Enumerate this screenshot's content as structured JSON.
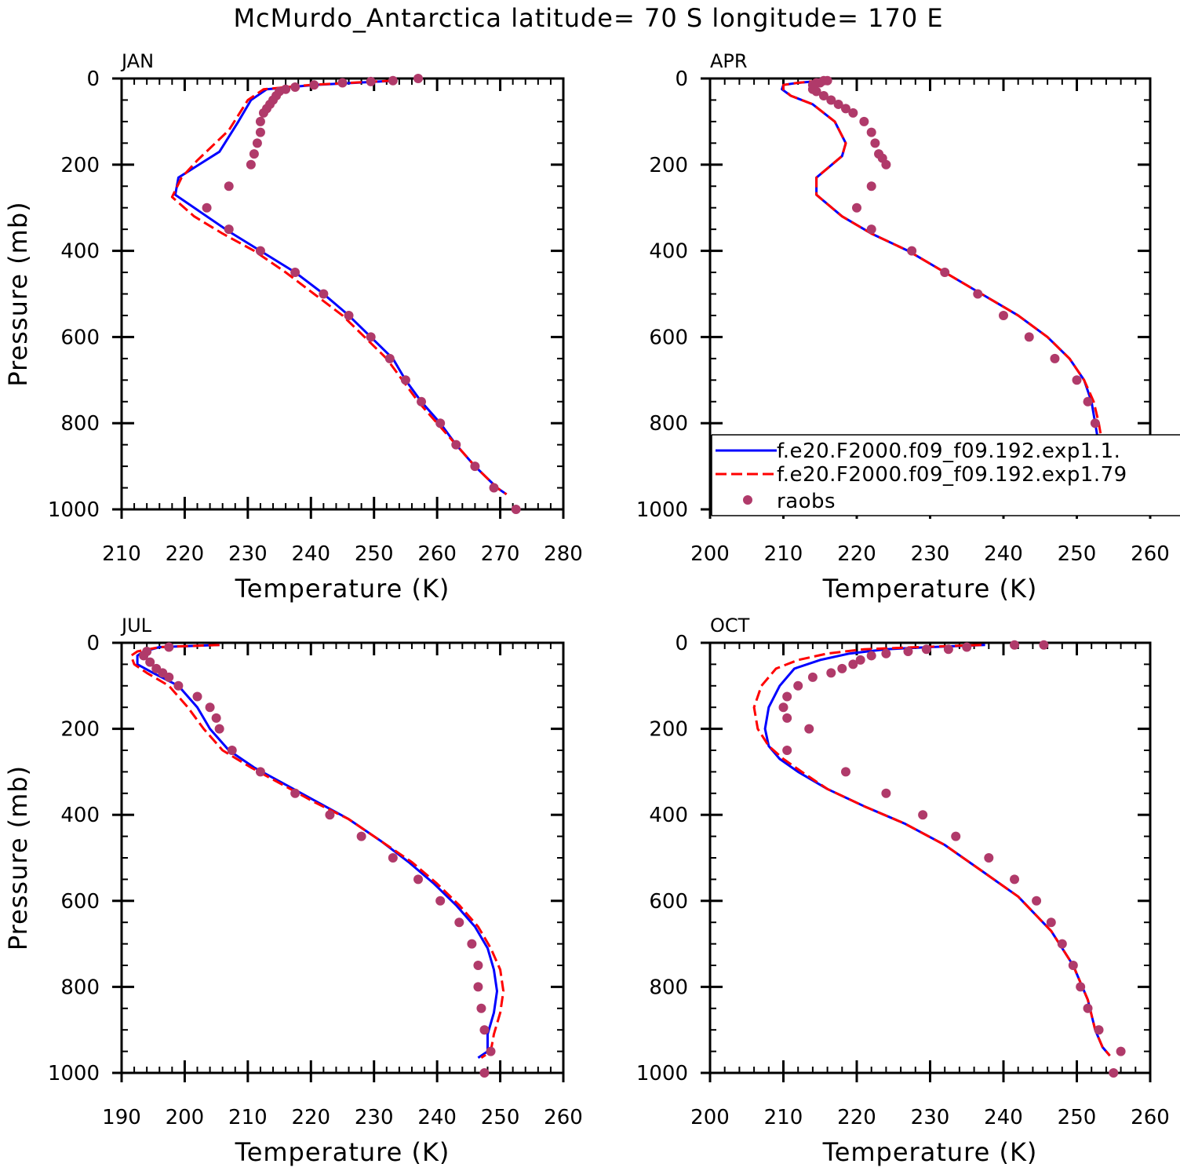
{
  "title": "McMurdo_Antarctica  latitude= 70 S longitude= 170 E",
  "legend": {
    "entries": [
      {
        "label": "f.e20.F2000.f09_f09.192.exp1.1.",
        "color": "#0000ff",
        "style": "solid"
      },
      {
        "label": "f.e20.F2000.f09_f09.192.exp1.79",
        "color": "#ff0000",
        "style": "dashed"
      },
      {
        "label": "raobs",
        "color": "#b03a6a",
        "style": "marker"
      }
    ]
  },
  "chart_data": [
    {
      "type": "line",
      "label": "JAN",
      "xlabel": "Temperature (K)",
      "ylabel": "Pressure (mb)",
      "xlim": [
        210,
        280
      ],
      "ylim": [
        1000,
        0
      ],
      "xticks": [
        210,
        220,
        230,
        240,
        250,
        260,
        270,
        280
      ],
      "yticks": [
        0,
        200,
        400,
        600,
        800,
        1000
      ],
      "series": [
        {
          "color": "#0000ff",
          "style": "solid",
          "x": [
            253.5,
            240.5,
            233,
            230.5,
            228.5,
            225.5,
            219,
            218.5,
            222.5,
            227,
            232,
            237.5,
            242,
            246,
            249.5,
            253,
            255,
            257.5,
            260.5,
            263,
            266,
            269.5,
            271
          ],
          "y": [
            5,
            15,
            25,
            50,
            100,
            170,
            230,
            270,
            310,
            355,
            400,
            450,
            500,
            550,
            600,
            650,
            700,
            750,
            800,
            850,
            900,
            950,
            965
          ]
        },
        {
          "color": "#ff0000",
          "style": "dashed",
          "x": [
            253,
            240,
            232.5,
            230,
            227,
            222,
            219.5,
            218,
            221.5,
            226,
            231,
            236,
            240.5,
            245,
            248.5,
            252,
            254.5,
            257,
            260,
            263,
            266,
            269.5,
            271
          ],
          "y": [
            5,
            15,
            25,
            50,
            120,
            190,
            230,
            275,
            320,
            360,
            400,
            450,
            500,
            550,
            600,
            650,
            700,
            750,
            800,
            850,
            900,
            950,
            965
          ]
        },
        {
          "color": "#b03a6a",
          "style": "marker",
          "x": [
            257,
            253,
            249.5,
            245,
            240.5,
            237.5,
            236,
            235,
            234.5,
            234,
            233.5,
            233,
            232.5,
            232,
            232,
            231.5,
            231,
            230.5,
            227,
            223.5,
            227,
            232,
            237.5,
            242,
            246,
            249.5,
            252.5,
            255,
            257.5,
            260.5,
            263,
            266,
            269,
            272.5
          ],
          "y": [
            0,
            5,
            7,
            10,
            15,
            20,
            25,
            30,
            40,
            50,
            60,
            70,
            80,
            100,
            125,
            150,
            175,
            200,
            250,
            300,
            350,
            400,
            450,
            500,
            550,
            600,
            650,
            700,
            750,
            800,
            850,
            900,
            950,
            1000
          ]
        }
      ]
    },
    {
      "type": "line",
      "label": "APR",
      "xlabel": "Temperature (K)",
      "ylabel": "",
      "xlim": [
        200,
        260
      ],
      "ylim": [
        1000,
        0
      ],
      "xticks": [
        200,
        210,
        220,
        230,
        240,
        250,
        260
      ],
      "yticks": [
        0,
        200,
        400,
        600,
        800,
        1000
      ],
      "series": [
        {
          "color": "#0000ff",
          "style": "solid",
          "x": [
            215.5,
            212,
            210,
            209.8,
            211,
            214,
            217,
            218.5,
            218,
            214.5,
            214.5,
            218,
            222,
            227,
            232,
            237,
            242,
            246,
            249,
            251,
            252,
            252.5,
            253,
            254.5,
            255.5
          ],
          "y": [
            5,
            10,
            15,
            25,
            40,
            60,
            100,
            150,
            180,
            230,
            270,
            320,
            360,
            400,
            450,
            500,
            550,
            600,
            650,
            700,
            750,
            800,
            850,
            900,
            960
          ]
        },
        {
          "color": "#ff0000",
          "style": "dashed",
          "x": [
            215,
            212,
            210,
            210,
            211,
            214,
            217,
            218.5,
            218,
            214.5,
            214.5,
            218,
            222,
            227,
            232,
            237,
            242,
            246,
            249,
            251,
            252.3,
            253,
            253.5,
            254.5,
            255.5
          ],
          "y": [
            5,
            10,
            15,
            25,
            40,
            60,
            100,
            150,
            180,
            230,
            270,
            320,
            360,
            400,
            450,
            500,
            550,
            600,
            650,
            700,
            750,
            800,
            850,
            900,
            960
          ]
        },
        {
          "color": "#b03a6a",
          "style": "marker",
          "x": [
            216,
            215.5,
            215,
            214.5,
            214,
            214,
            214.5,
            215.5,
            216.5,
            217.5,
            218.5,
            219.5,
            221,
            222,
            222.5,
            223,
            223.5,
            224,
            222,
            220,
            222,
            227.5,
            232,
            236.5,
            240,
            243.5,
            247,
            250,
            251.5,
            252.5,
            253,
            254,
            256,
            256.5
          ],
          "y": [
            5,
            5,
            10,
            10,
            15,
            25,
            30,
            40,
            50,
            60,
            70,
            80,
            100,
            125,
            150,
            175,
            185,
            200,
            250,
            300,
            350,
            400,
            450,
            500,
            550,
            600,
            650,
            700,
            750,
            800,
            850,
            900,
            950,
            1000
          ]
        }
      ]
    },
    {
      "type": "line",
      "label": "JUL",
      "xlabel": "Temperature (K)",
      "ylabel": "Pressure (mb)",
      "xlim": [
        190,
        260
      ],
      "ylim": [
        1000,
        0
      ],
      "xticks": [
        190,
        200,
        210,
        220,
        230,
        240,
        250,
        260
      ],
      "yticks": [
        0,
        200,
        400,
        600,
        800,
        1000
      ],
      "series": [
        {
          "color": "#0000ff",
          "style": "solid",
          "x": [
            205.5,
            196,
            193.5,
            192.5,
            192.5,
            195,
            199,
            202,
            204,
            207,
            211,
            216,
            221,
            226,
            231,
            235.5,
            239.5,
            243,
            246,
            248,
            249,
            249.5,
            249,
            248,
            248,
            246.5
          ],
          "y": [
            5,
            10,
            20,
            30,
            50,
            70,
            100,
            150,
            200,
            250,
            290,
            330,
            370,
            410,
            460,
            510,
            560,
            610,
            660,
            710,
            760,
            810,
            860,
            910,
            950,
            965
          ]
        },
        {
          "color": "#ff0000",
          "style": "dashed",
          "x": [
            205.5,
            196,
            192.5,
            191.5,
            192,
            194,
            197.5,
            200.5,
            203,
            206,
            210.5,
            215.5,
            220.5,
            226,
            231,
            236,
            240,
            243.5,
            246.5,
            248.5,
            250,
            250.5,
            250,
            249,
            248.5,
            247
          ],
          "y": [
            5,
            10,
            20,
            30,
            50,
            70,
            100,
            150,
            200,
            250,
            290,
            330,
            370,
            410,
            460,
            510,
            560,
            610,
            660,
            710,
            760,
            810,
            860,
            910,
            950,
            965
          ]
        },
        {
          "color": "#b03a6a",
          "style": "marker",
          "x": [
            197.5,
            194,
            193.5,
            194.5,
            195.5,
            196.5,
            197.5,
            199,
            202,
            204,
            205,
            205.5,
            207.5,
            212,
            217.5,
            223,
            228,
            233,
            237,
            240.5,
            243.5,
            245.5,
            246.5,
            246.5,
            247,
            247.5,
            248.5,
            247.5
          ],
          "y": [
            10,
            20,
            30,
            45,
            60,
            70,
            80,
            100,
            125,
            150,
            175,
            200,
            250,
            300,
            350,
            400,
            450,
            500,
            550,
            600,
            650,
            700,
            750,
            800,
            850,
            900,
            950,
            1000
          ]
        }
      ]
    },
    {
      "type": "line",
      "label": "OCT",
      "xlabel": "Temperature (K)",
      "ylabel": "",
      "xlim": [
        200,
        260
      ],
      "ylim": [
        1000,
        0
      ],
      "xticks": [
        200,
        210,
        220,
        230,
        240,
        250,
        260
      ],
      "yticks": [
        0,
        200,
        400,
        600,
        800,
        1000
      ],
      "series": [
        {
          "color": "#0000ff",
          "style": "solid",
          "x": [
            237.5,
            230,
            224,
            219,
            215,
            211.5,
            209.5,
            208,
            207.5,
            208,
            209.5,
            212,
            216,
            221,
            226.5,
            232,
            237,
            242,
            246.5,
            249.5,
            251.5,
            252.5,
            253.5,
            254.5
          ],
          "y": [
            5,
            10,
            15,
            25,
            40,
            60,
            100,
            150,
            200,
            240,
            270,
            300,
            340,
            380,
            420,
            470,
            530,
            590,
            670,
            750,
            830,
            900,
            940,
            960
          ]
        },
        {
          "color": "#ff0000",
          "style": "dashed",
          "x": [
            237,
            228.5,
            221,
            216,
            212,
            209,
            207,
            206,
            206.5,
            208,
            210,
            212.5,
            216,
            221,
            226.5,
            232,
            237,
            242,
            246.5,
            249.5,
            251.5,
            252.5,
            253.5,
            254.5
          ],
          "y": [
            5,
            10,
            15,
            25,
            40,
            60,
            100,
            150,
            200,
            240,
            270,
            300,
            340,
            380,
            420,
            470,
            530,
            590,
            670,
            750,
            830,
            900,
            940,
            960
          ]
        },
        {
          "color": "#b03a6a",
          "style": "marker",
          "x": [
            245.5,
            241.5,
            235,
            232.5,
            229.5,
            227,
            224,
            222,
            220.5,
            219.5,
            218,
            216.5,
            214,
            212,
            210.5,
            210.5,
            210,
            210.5,
            213.5,
            218.5,
            224,
            229,
            233.5,
            238,
            241.5,
            244.5,
            246.5,
            248,
            249.5,
            250.5,
            251.5,
            253,
            256,
            255
          ],
          "y": [
            5,
            5,
            10,
            15,
            15,
            20,
            25,
            30,
            40,
            50,
            60,
            70,
            80,
            100,
            125,
            175,
            150,
            250,
            200,
            300,
            350,
            400,
            450,
            500,
            550,
            600,
            650,
            700,
            750,
            800,
            850,
            900,
            950,
            1000
          ]
        }
      ]
    }
  ]
}
